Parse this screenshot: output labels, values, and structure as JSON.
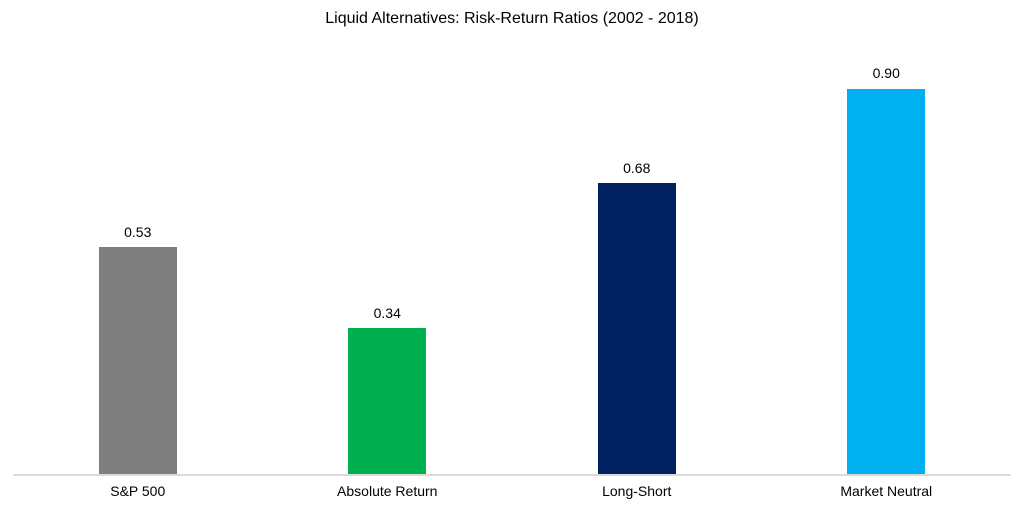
{
  "chart_data": {
    "type": "bar",
    "title": "Liquid Alternatives:  Risk-Return Ratios (2002 - 2018)",
    "categories": [
      "S&P 500",
      "Absolute Return",
      "Long-Short",
      "Market Neutral"
    ],
    "values": [
      0.53,
      0.34,
      0.68,
      0.9
    ],
    "value_labels": [
      "0.53",
      "0.34",
      "0.68",
      "0.90"
    ],
    "bar_colors": [
      "#7F7F7F",
      "#00B050",
      "#002060",
      "#00B0F0"
    ],
    "xlabel": "",
    "ylabel": "",
    "ylim": [
      0,
      1.0
    ],
    "grid": false,
    "legend": "none",
    "data_labels": "above-bars",
    "axis_line_color": "#D9D9D9",
    "text_color": "#000000",
    "background_color": "#FFFFFF"
  }
}
